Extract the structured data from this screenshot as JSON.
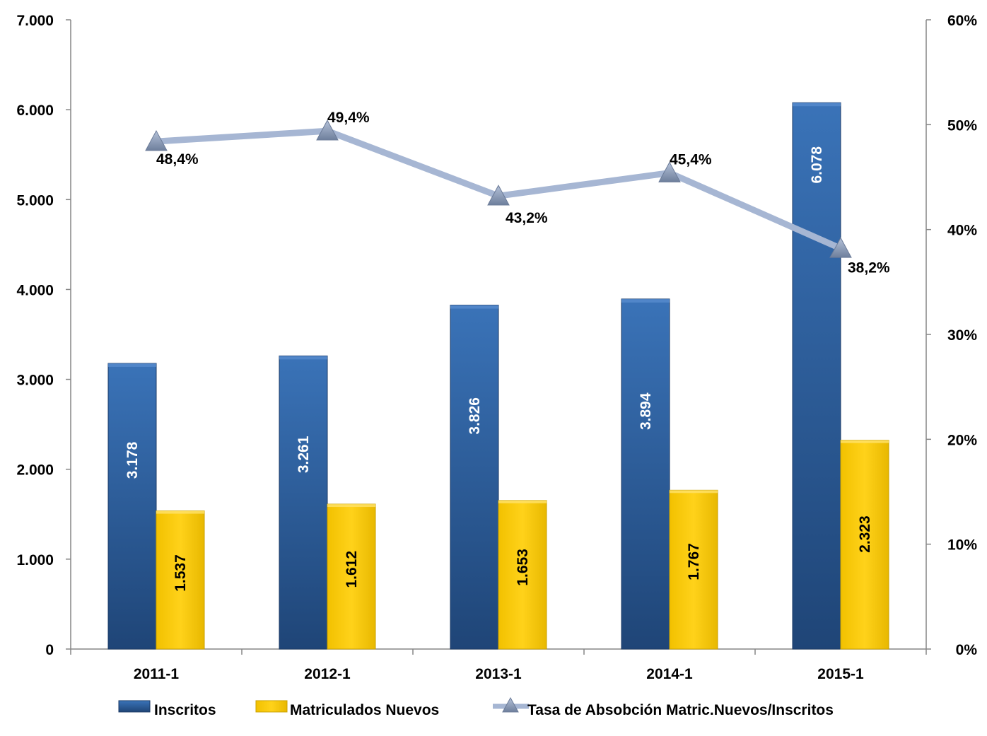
{
  "chart_data": {
    "type": "bar",
    "categories": [
      "2011-1",
      "2012-1",
      "2013-1",
      "2014-1",
      "2015-1"
    ],
    "series": [
      {
        "name": "Inscritos",
        "type": "bar",
        "axis": "left",
        "color": "#2E5F9E",
        "values": [
          3178,
          3261,
          3826,
          3894,
          6078
        ],
        "labels": [
          "3.178",
          "3.261",
          "3.826",
          "3.894",
          "6.078"
        ]
      },
      {
        "name": "Matriculados Nuevos",
        "type": "bar",
        "axis": "left",
        "color": "#FFCC00",
        "values": [
          1537,
          1612,
          1653,
          1767,
          2323
        ],
        "labels": [
          "1.537",
          "1.612",
          "1.653",
          "1.767",
          "2.323"
        ]
      },
      {
        "name": "Tasa de Absobción Matric.Nuevos/Inscritos",
        "type": "line",
        "axis": "right",
        "color": "#A6B6D3",
        "values": [
          48.4,
          49.4,
          43.2,
          45.4,
          38.2
        ],
        "labels": [
          "48,4%",
          "49,4%",
          "43,2%",
          "45,4%",
          "38,2%"
        ]
      }
    ],
    "y_left": {
      "min": 0,
      "max": 7000,
      "ticks": [
        0,
        1000,
        2000,
        3000,
        4000,
        5000,
        6000,
        7000
      ],
      "tick_labels": [
        "0",
        "1.000",
        "2.000",
        "3.000",
        "4.000",
        "5.000",
        "6.000",
        "7.000"
      ]
    },
    "y_right": {
      "min": 0,
      "max": 60,
      "ticks": [
        0,
        10,
        20,
        30,
        40,
        50,
        60
      ],
      "tick_labels": [
        "0%",
        "10%",
        "20%",
        "30%",
        "40%",
        "50%",
        "60%"
      ]
    },
    "grid": false,
    "legend_position": "bottom"
  }
}
